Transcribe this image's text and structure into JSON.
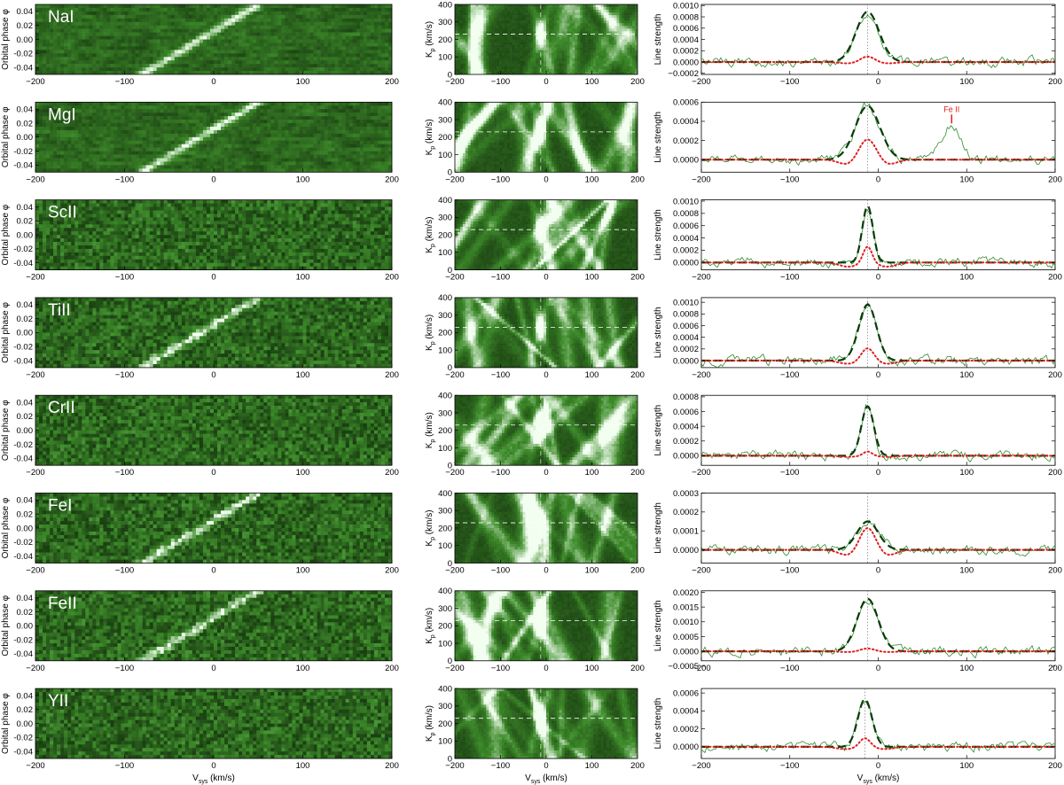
{
  "figure": {
    "x_axis_label": "V",
    "x_axis_label_sub": "sys",
    "x_axis_label_unit": " (km/s)",
    "left_ylabel": "Orbital phase φ",
    "mid_ylabel": "K",
    "mid_ylabel_sub": "p",
    "mid_ylabel_unit": " (km/s)",
    "right_ylabel": "Line strength",
    "colors": {
      "map_dark": "#0a1c06",
      "map_mid": "#3d8a2a",
      "map_light": "#f2fff0",
      "ccf_line": "#2e8b2e",
      "model_total": "#0a3a0a",
      "model_component": "#e02020",
      "dashed_ref": "#ffffff"
    }
  },
  "chart_data": [
    {
      "element": "NaI",
      "phase_map": {
        "type": "heatmap",
        "xlim": [
          -200,
          200
        ],
        "ylim": [
          -0.05,
          0.05
        ],
        "x_ticks": [
          -200,
          -100,
          0,
          100,
          200
        ],
        "y_ticks": [
          "0.04",
          "0.02",
          "0.00",
          "-0.02",
          "-0.04"
        ],
        "trail_visible": true
      },
      "kp_map": {
        "type": "heatmap",
        "xlim": [
          -200,
          200
        ],
        "ylim": [
          0,
          400
        ],
        "x_ticks": [
          -200,
          -100,
          0,
          100,
          200
        ],
        "y_ticks": [
          0,
          100,
          200,
          300,
          400
        ],
        "peak_vsys": -12,
        "peak_kp": 230,
        "reference_kp": 230
      },
      "line_profile": {
        "type": "line",
        "xlim": [
          -200,
          200
        ],
        "ylim": [
          -0.00022,
          0.00102
        ],
        "y_ticks": [
          "0.0010",
          "0.0008",
          "0.0006",
          "0.0004",
          "0.0002",
          "0.0000",
          "-0.0002"
        ],
        "center": -12,
        "peak": 0.00089,
        "component_peak": 0.0001,
        "model_width": 13,
        "component_width": 8
      }
    },
    {
      "element": "MgI",
      "phase_map": {
        "type": "heatmap",
        "xlim": [
          -200,
          200
        ],
        "ylim": [
          -0.05,
          0.05
        ],
        "x_ticks": [
          -200,
          -100,
          0,
          100,
          200
        ],
        "y_ticks": [
          "0.04",
          "0.02",
          "0.00",
          "-0.02",
          "-0.04"
        ],
        "trail_visible": true
      },
      "kp_map": {
        "type": "heatmap",
        "xlim": [
          -200,
          200
        ],
        "ylim": [
          0,
          400
        ],
        "x_ticks": [
          -200,
          -100,
          0,
          100,
          200
        ],
        "y_ticks": [
          0,
          100,
          200,
          300,
          400
        ],
        "peak_vsys": -12,
        "peak_kp": 230,
        "reference_kp": 230
      },
      "line_profile": {
        "type": "line",
        "xlim": [
          -200,
          200
        ],
        "ylim": [
          -0.00013,
          0.0006
        ],
        "y_ticks": [
          "0.0006",
          "0.0004",
          "0.0002",
          "0.0000"
        ],
        "center": -12,
        "peak": 0.00056,
        "component_peak": 0.00022,
        "model_width": 14,
        "component_width": 10,
        "annotation": {
          "text": "Fe II",
          "x": 83,
          "y": 0.00036
        }
      }
    },
    {
      "element": "ScII",
      "phase_map": {
        "type": "heatmap",
        "xlim": [
          -200,
          200
        ],
        "ylim": [
          -0.05,
          0.05
        ],
        "x_ticks": [
          -200,
          -100,
          0,
          100,
          200
        ],
        "y_ticks": [
          "0.04",
          "0.02",
          "0.00",
          "-0.02",
          "-0.04"
        ],
        "trail_visible": false
      },
      "kp_map": {
        "type": "heatmap",
        "xlim": [
          -200,
          200
        ],
        "ylim": [
          0,
          400
        ],
        "x_ticks": [
          -200,
          -100,
          0,
          100,
          200
        ],
        "y_ticks": [
          0,
          100,
          200,
          300,
          400
        ],
        "peak_vsys": -12,
        "peak_kp": 230,
        "reference_kp": 230
      },
      "line_profile": {
        "type": "line",
        "xlim": [
          -200,
          200
        ],
        "ylim": [
          -0.00012,
          0.00102
        ],
        "y_ticks": [
          "0.0010",
          "0.0008",
          "0.0006",
          "0.0004",
          "0.0002",
          "0.0000"
        ],
        "center": -12,
        "peak": 0.00092,
        "component_peak": 0.00027,
        "model_width": 6,
        "component_width": 5
      }
    },
    {
      "element": "TiII",
      "phase_map": {
        "type": "heatmap",
        "xlim": [
          -200,
          200
        ],
        "ylim": [
          -0.05,
          0.05
        ],
        "x_ticks": [
          -200,
          -100,
          0,
          100,
          200
        ],
        "y_ticks": [
          "0.04",
          "0.02",
          "0.00",
          "-0.02",
          "-0.04"
        ],
        "trail_visible": true
      },
      "kp_map": {
        "type": "heatmap",
        "xlim": [
          -200,
          200
        ],
        "ylim": [
          0,
          400
        ],
        "x_ticks": [
          -200,
          -100,
          0,
          100,
          200
        ],
        "y_ticks": [
          0,
          100,
          200,
          300,
          400
        ],
        "peak_vsys": -12,
        "peak_kp": 230,
        "reference_kp": 230
      },
      "line_profile": {
        "type": "line",
        "xlim": [
          -200,
          200
        ],
        "ylim": [
          -0.00012,
          0.00108
        ],
        "y_ticks": [
          "0.0010",
          "0.0008",
          "0.0006",
          "0.0004",
          "0.0002",
          "0.0000"
        ],
        "center": -12,
        "peak": 0.00096,
        "component_peak": 0.00022,
        "model_width": 10,
        "component_width": 7
      }
    },
    {
      "element": "CrII",
      "phase_map": {
        "type": "heatmap",
        "xlim": [
          -200,
          200
        ],
        "ylim": [
          -0.05,
          0.05
        ],
        "x_ticks": [
          -200,
          -100,
          0,
          100,
          200
        ],
        "y_ticks": [
          "0.04",
          "0.02",
          "0.00",
          "-0.02",
          "-0.04"
        ],
        "trail_visible": false
      },
      "kp_map": {
        "type": "heatmap",
        "xlim": [
          -200,
          200
        ],
        "ylim": [
          0,
          400
        ],
        "x_ticks": [
          -200,
          -100,
          0,
          100,
          200
        ],
        "y_ticks": [
          0,
          100,
          200,
          300,
          400
        ],
        "peak_vsys": -12,
        "peak_kp": 230,
        "reference_kp": 230
      },
      "line_profile": {
        "type": "line",
        "xlim": [
          -200,
          200
        ],
        "ylim": [
          -0.00013,
          0.00082
        ],
        "y_ticks": [
          "0.0008",
          "0.0006",
          "0.0004",
          "0.0002",
          "0.0000"
        ],
        "center": -12,
        "peak": 0.00067,
        "component_peak": 6e-05,
        "model_width": 7,
        "component_width": 5
      }
    },
    {
      "element": "FeI",
      "phase_map": {
        "type": "heatmap",
        "xlim": [
          -200,
          200
        ],
        "ylim": [
          -0.05,
          0.05
        ],
        "x_ticks": [
          -200,
          -100,
          0,
          100,
          200
        ],
        "y_ticks": [
          "0.04",
          "0.02",
          "0.00",
          "-0.02",
          "-0.04"
        ],
        "trail_visible": true
      },
      "kp_map": {
        "type": "heatmap",
        "xlim": [
          -200,
          200
        ],
        "ylim": [
          0,
          400
        ],
        "x_ticks": [
          -200,
          -100,
          0,
          100,
          200
        ],
        "y_ticks": [
          0,
          100,
          200,
          300,
          400
        ],
        "peak_vsys": -12,
        "peak_kp": 230,
        "reference_kp": 230
      },
      "line_profile": {
        "type": "line",
        "xlim": [
          -200,
          200
        ],
        "ylim": [
          -7e-05,
          0.0003
        ],
        "y_ticks": [
          "0.0003",
          "0.0002",
          "0.0001",
          "0.0000"
        ],
        "center": -12,
        "peak": 0.00015,
        "component_peak": 0.00012,
        "model_width": 12,
        "component_width": 9
      }
    },
    {
      "element": "FeII",
      "phase_map": {
        "type": "heatmap",
        "xlim": [
          -200,
          200
        ],
        "ylim": [
          -0.05,
          0.05
        ],
        "x_ticks": [
          -200,
          -100,
          0,
          100,
          200
        ],
        "y_ticks": [
          "0.04",
          "0.02",
          "0.00",
          "-0.02",
          "-0.04"
        ],
        "trail_visible": true
      },
      "kp_map": {
        "type": "heatmap",
        "xlim": [
          -200,
          200
        ],
        "ylim": [
          0,
          400
        ],
        "x_ticks": [
          -200,
          -100,
          0,
          100,
          200
        ],
        "y_ticks": [
          0,
          100,
          200,
          300,
          400
        ],
        "peak_vsys": -12,
        "peak_kp": 230,
        "reference_kp": 230
      },
      "line_profile": {
        "type": "line",
        "xlim": [
          -200,
          200
        ],
        "ylim": [
          -0.00032,
          0.00205
        ],
        "y_ticks": [
          "0.0020",
          "0.0015",
          "0.0010",
          "0.0005",
          "0.0000",
          "-0.0005"
        ],
        "center": -12,
        "peak": 0.00178,
        "component_peak": 0.0001,
        "model_width": 12,
        "component_width": 8
      }
    },
    {
      "element": "YII",
      "phase_map": {
        "type": "heatmap",
        "xlim": [
          -200,
          200
        ],
        "ylim": [
          -0.05,
          0.05
        ],
        "x_ticks": [
          -200,
          -100,
          0,
          100,
          200
        ],
        "y_ticks": [
          "0.04",
          "0.02",
          "0.00",
          "-0.02",
          "-0.04"
        ],
        "trail_visible": false
      },
      "kp_map": {
        "type": "heatmap",
        "xlim": [
          -200,
          200
        ],
        "ylim": [
          0,
          400
        ],
        "x_ticks": [
          -200,
          -100,
          0,
          100,
          200
        ],
        "y_ticks": [
          0,
          100,
          200,
          300,
          400
        ],
        "peak_vsys": -12,
        "peak_kp": 230,
        "reference_kp": 230
      },
      "line_profile": {
        "type": "line",
        "xlim": [
          -200,
          200
        ],
        "ylim": [
          -0.00013,
          0.00065
        ],
        "y_ticks": [
          "0.0006",
          "0.0004",
          "0.0002",
          "0.0000"
        ],
        "center": -15,
        "peak": 0.00053,
        "component_peak": 0.0001,
        "model_width": 8,
        "component_width": 6
      }
    }
  ]
}
